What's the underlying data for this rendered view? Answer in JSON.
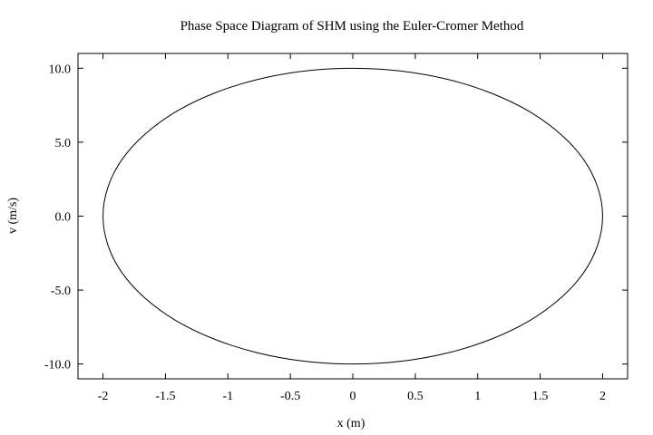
{
  "chart_data": {
    "type": "line",
    "title": "Phase Space Diagram of SHM using the Euler-Cromer Method",
    "xlabel": "x (m)",
    "ylabel": "v (m/s)",
    "xlim": [
      -2.2,
      2.2
    ],
    "ylim": [
      -11.0,
      11.0
    ],
    "x_ticks": [
      {
        "value": -2,
        "label": "-2"
      },
      {
        "value": -1.5,
        "label": "-1.5"
      },
      {
        "value": -1,
        "label": "-1"
      },
      {
        "value": -0.5,
        "label": "-0.5"
      },
      {
        "value": 0,
        "label": "0"
      },
      {
        "value": 0.5,
        "label": "0.5"
      },
      {
        "value": 1,
        "label": "1"
      },
      {
        "value": 1.5,
        "label": "1.5"
      },
      {
        "value": 2,
        "label": "2"
      }
    ],
    "y_ticks": [
      {
        "value": -10,
        "label": "-10.0"
      },
      {
        "value": -5,
        "label": "-5.0"
      },
      {
        "value": 0,
        "label": "0.0"
      },
      {
        "value": 5,
        "label": "5.0"
      },
      {
        "value": 10,
        "label": "10.0"
      }
    ],
    "grid": false,
    "legend": false,
    "line_color": "#000000",
    "series": [
      {
        "x": [
          2.0,
          1.848,
          1.414,
          0.765,
          0.0,
          -0.765,
          -1.414,
          -1.848,
          -2.0,
          -1.848,
          -1.414,
          -0.765,
          0.0,
          0.765,
          1.414,
          1.848,
          2.0
        ],
        "y": [
          0.0,
          3.827,
          7.071,
          9.239,
          10.0,
          9.239,
          7.071,
          3.827,
          0.0,
          -3.827,
          -7.071,
          -9.239,
          -10.0,
          -9.239,
          -7.071,
          -3.827,
          0.0
        ]
      }
    ]
  }
}
